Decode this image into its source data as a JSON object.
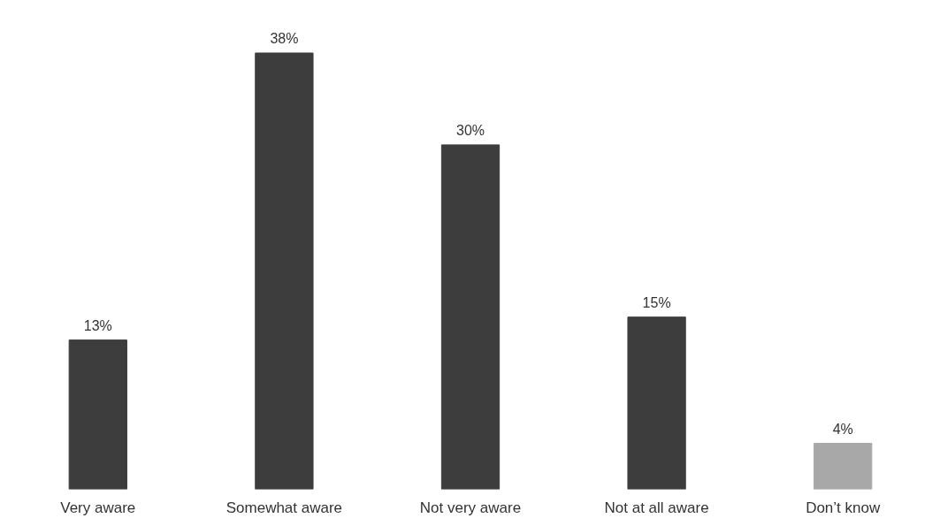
{
  "chart_data": {
    "type": "bar",
    "categories": [
      "Very aware",
      "Somewhat aware",
      "Not very aware",
      "Not at all aware",
      "Don’t know"
    ],
    "values": [
      13,
      38,
      30,
      15,
      4
    ],
    "value_labels": [
      "13%",
      "38%",
      "30%",
      "15%",
      "4%"
    ],
    "colors": [
      "#3d3d3d",
      "#3d3d3d",
      "#3d3d3d",
      "#3d3d3d",
      "#a8a8a8"
    ]
  }
}
